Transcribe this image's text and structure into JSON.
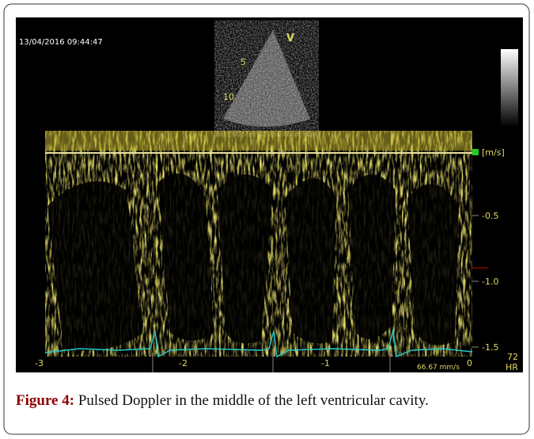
{
  "figure": {
    "timestamp": "13/04/2016 09:44:47",
    "probe_marker": "V",
    "depth_labels": [
      "5",
      "10"
    ],
    "velocity_unit": "[m/s]",
    "velocity_ticks": [
      "-0.5",
      "-1.0",
      "-1.5"
    ],
    "time_ticks": [
      "-3",
      "-2",
      "-1",
      "0"
    ],
    "sweep_speed": "66.67 mm/s",
    "heart_rate": "72",
    "heart_rate_label": "HR"
  },
  "caption": {
    "label": "Figure 4:",
    "text": " Pulsed Doppler in the middle of the left ventricular cavity."
  }
}
